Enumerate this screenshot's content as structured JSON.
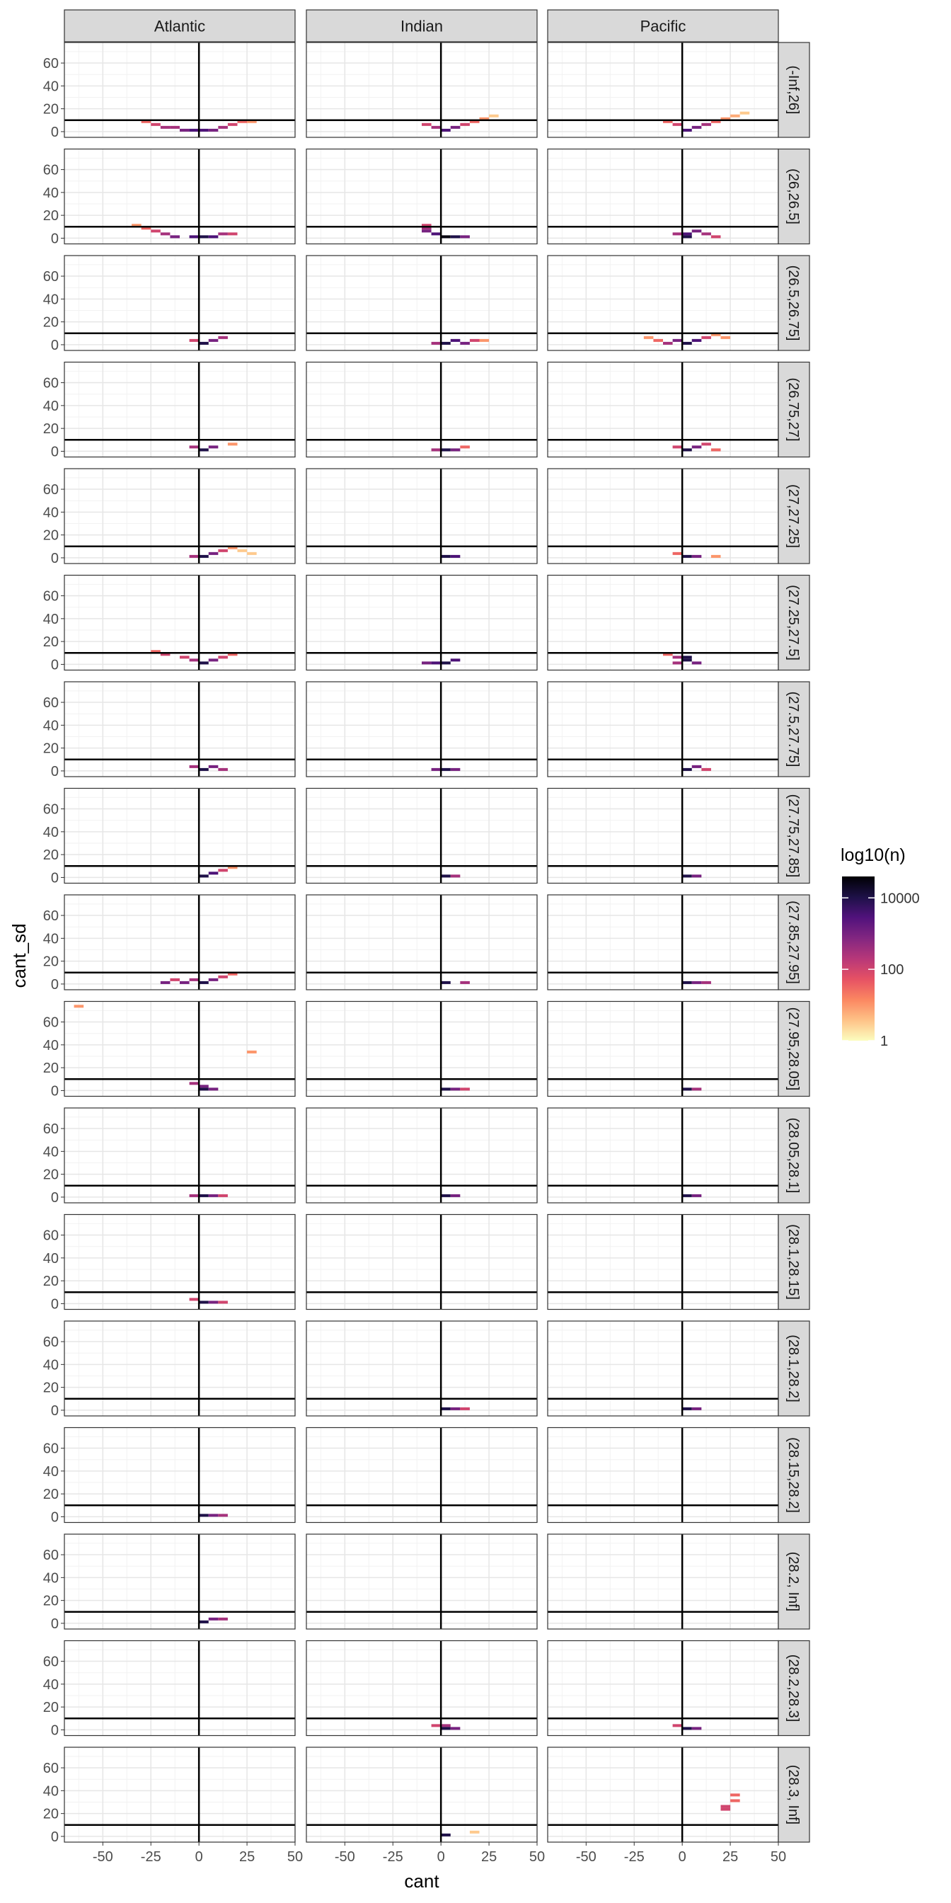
{
  "chart_data": {
    "type": "heatmap",
    "title": "",
    "xlabel": "cant",
    "ylabel": "cant_sd",
    "xlim": [
      -70,
      50
    ],
    "ylim": [
      -5,
      78
    ],
    "x_ticks": [
      "-50",
      "-25",
      "0",
      "25",
      "50"
    ],
    "x_tick_values": [
      -50,
      -25,
      0,
      25,
      50
    ],
    "y_ticks": [
      "0",
      "20",
      "40",
      "60"
    ],
    "y_tick_values": [
      0,
      20,
      40,
      60
    ],
    "reference_lines": {
      "x": 0,
      "y": 10
    },
    "bin_size": {
      "x": 5,
      "y": 2.5
    },
    "grid": true,
    "columns": [
      "Atlantic",
      "Indian",
      "Pacific"
    ],
    "rows": [
      "(-Inf,26]",
      "(26,26.5]",
      "(26.5,26.75]",
      "(26.75,27]",
      "(27,27.25]",
      "(27.25,27.5]",
      "(27.5,27.75]",
      "(27.75,27.85]",
      "(27.85,27.95]",
      "(27.95,28.05]",
      "(28.05,28.1]",
      "(28.1,28.15]",
      "(28.1,28.2]",
      "(28.15,28.2]",
      "(28.2, Inf]",
      "(28.2,28.3]",
      "(28.3, Inf]"
    ],
    "legend": {
      "title": "log10(n)",
      "position": "right",
      "labels": [
        "10000",
        "100",
        "1"
      ],
      "label_log_values": [
        4,
        2,
        0
      ],
      "range_log": [
        0,
        4.6
      ],
      "colormap": "magma",
      "stops": [
        "#FCFDBF",
        "#FEC287",
        "#FB8761",
        "#E65164",
        "#B73779",
        "#822681",
        "#51127C",
        "#1D1147",
        "#000004"
      ]
    },
    "note": "cells are [cant_bin_start, cant_sd_bin_start, log10(n)]",
    "cells": [
      [
        [
          [
            -30,
            7.5,
            1.5
          ],
          [
            -25,
            5,
            2
          ],
          [
            -20,
            2.5,
            2.5
          ],
          [
            -15,
            2.5,
            2.5
          ],
          [
            -10,
            0,
            3
          ],
          [
            -5,
            0,
            3.5
          ],
          [
            0,
            0,
            3.5
          ],
          [
            5,
            0,
            3
          ],
          [
            10,
            2.5,
            2.5
          ],
          [
            15,
            5,
            2
          ],
          [
            20,
            7.5,
            1.5
          ],
          [
            25,
            7.5,
            1
          ]
        ],
        [
          [
            -10,
            5,
            2
          ],
          [
            -5,
            2.5,
            2.5
          ],
          [
            0,
            0,
            3.5
          ],
          [
            5,
            2.5,
            3
          ],
          [
            10,
            5,
            2
          ],
          [
            15,
            7.5,
            1.5
          ],
          [
            20,
            10,
            1
          ],
          [
            25,
            12.5,
            0.5
          ]
        ],
        [
          [
            -10,
            7.5,
            1.5
          ],
          [
            -5,
            5,
            2
          ],
          [
            0,
            0,
            3.5
          ],
          [
            5,
            2.5,
            3
          ],
          [
            10,
            5,
            2.5
          ],
          [
            15,
            7.5,
            1.5
          ],
          [
            20,
            10,
            1
          ],
          [
            25,
            12.5,
            0.8
          ],
          [
            30,
            15,
            0.5
          ]
        ]
      ],
      [
        [
          [
            -35,
            10,
            1
          ],
          [
            -30,
            7.5,
            1.5
          ],
          [
            -25,
            5,
            2
          ],
          [
            -20,
            2.5,
            2.5
          ],
          [
            -15,
            0,
            3
          ],
          [
            -5,
            0,
            3.5
          ],
          [
            0,
            0,
            4
          ],
          [
            5,
            0,
            3.5
          ],
          [
            10,
            2.5,
            2.5
          ],
          [
            15,
            2.5,
            2
          ]
        ],
        [
          [
            -10,
            7.5,
            2.5
          ],
          [
            -10,
            5,
            3
          ],
          [
            -5,
            2.5,
            3.5
          ],
          [
            0,
            0,
            4.5
          ],
          [
            5,
            0,
            4
          ],
          [
            10,
            0,
            3
          ],
          [
            -10,
            10,
            2
          ]
        ],
        [
          [
            -5,
            2.5,
            2.5
          ],
          [
            0,
            2.5,
            3.5
          ],
          [
            0,
            0,
            4
          ],
          [
            5,
            5,
            3
          ],
          [
            10,
            2.5,
            2.5
          ],
          [
            15,
            0,
            2
          ]
        ]
      ],
      [
        [
          [
            -5,
            2.5,
            2
          ],
          [
            0,
            0,
            4
          ],
          [
            5,
            2.5,
            3
          ],
          [
            10,
            5,
            2.5
          ]
        ],
        [
          [
            -5,
            0,
            2.5
          ],
          [
            0,
            0,
            4
          ],
          [
            5,
            2.5,
            3.5
          ],
          [
            10,
            0,
            3
          ],
          [
            15,
            2.5,
            2
          ],
          [
            20,
            2.5,
            1
          ]
        ],
        [
          [
            -20,
            5,
            1
          ],
          [
            -15,
            2.5,
            1.5
          ],
          [
            -10,
            0,
            2.5
          ],
          [
            -5,
            2.5,
            3
          ],
          [
            0,
            0,
            4
          ],
          [
            5,
            2.5,
            3.5
          ],
          [
            10,
            5,
            2
          ],
          [
            15,
            7.5,
            1
          ],
          [
            20,
            5,
            1
          ]
        ]
      ],
      [
        [
          [
            -5,
            2.5,
            2.5
          ],
          [
            0,
            0,
            4
          ],
          [
            5,
            2.5,
            3
          ],
          [
            15,
            5,
            1
          ]
        ],
        [
          [
            -5,
            0,
            2.5
          ],
          [
            0,
            0,
            4
          ],
          [
            5,
            0,
            3
          ],
          [
            10,
            2.5,
            1.5
          ]
        ],
        [
          [
            -5,
            2.5,
            2
          ],
          [
            0,
            0,
            4
          ],
          [
            5,
            2.5,
            3
          ],
          [
            10,
            5,
            2
          ],
          [
            15,
            0,
            1.5
          ]
        ]
      ],
      [
        [
          [
            -5,
            0,
            2.5
          ],
          [
            0,
            0,
            4
          ],
          [
            5,
            2.5,
            3
          ],
          [
            10,
            5,
            2
          ],
          [
            15,
            7.5,
            1
          ],
          [
            20,
            5,
            0.5
          ],
          [
            25,
            2.5,
            0.5
          ]
        ],
        [
          [
            0,
            0,
            4
          ],
          [
            5,
            0,
            3.5
          ]
        ],
        [
          [
            -5,
            2.5,
            1.5
          ],
          [
            0,
            0,
            4
          ],
          [
            5,
            0,
            3
          ],
          [
            15,
            0,
            1
          ]
        ]
      ],
      [
        [
          [
            -25,
            10,
            1.5
          ],
          [
            -20,
            7.5,
            2
          ],
          [
            -10,
            5,
            2
          ],
          [
            -5,
            2.5,
            2.5
          ],
          [
            0,
            0,
            4
          ],
          [
            5,
            2.5,
            3
          ],
          [
            10,
            5,
            2
          ],
          [
            15,
            7.5,
            1.5
          ]
        ],
        [
          [
            -10,
            0,
            3
          ],
          [
            -5,
            0,
            3.5
          ],
          [
            0,
            0,
            4
          ],
          [
            5,
            2.5,
            3.5
          ]
        ],
        [
          [
            -10,
            7.5,
            1.5
          ],
          [
            -5,
            5,
            2.5
          ],
          [
            0,
            5,
            4
          ],
          [
            0,
            2.5,
            4
          ],
          [
            5,
            0,
            3
          ],
          [
            -5,
            0,
            2.5
          ]
        ]
      ],
      [
        [
          [
            -5,
            2.5,
            2.5
          ],
          [
            0,
            0,
            4
          ],
          [
            5,
            2.5,
            3
          ],
          [
            10,
            0,
            2.5
          ]
        ],
        [
          [
            -5,
            0,
            3
          ],
          [
            0,
            0,
            4
          ],
          [
            5,
            0,
            3
          ]
        ],
        [
          [
            0,
            0,
            4
          ],
          [
            5,
            2.5,
            3
          ],
          [
            10,
            0,
            2
          ]
        ]
      ],
      [
        [
          [
            0,
            0,
            4
          ],
          [
            5,
            2.5,
            3.5
          ],
          [
            10,
            5,
            2
          ],
          [
            15,
            7.5,
            1
          ]
        ],
        [
          [
            0,
            0,
            4
          ],
          [
            5,
            0,
            2.5
          ]
        ],
        [
          [
            0,
            0,
            4
          ],
          [
            5,
            0,
            3
          ]
        ]
      ],
      [
        [
          [
            -20,
            0,
            3
          ],
          [
            -15,
            2.5,
            2
          ],
          [
            -10,
            0,
            3
          ],
          [
            -5,
            2.5,
            2.5
          ],
          [
            0,
            0,
            4
          ],
          [
            5,
            2.5,
            3
          ],
          [
            10,
            5,
            2
          ],
          [
            15,
            7.5,
            1.5
          ]
        ],
        [
          [
            0,
            0,
            4
          ],
          [
            10,
            0,
            2.5
          ]
        ],
        [
          [
            0,
            0,
            4
          ],
          [
            5,
            0,
            3
          ],
          [
            10,
            0,
            2.5
          ]
        ]
      ],
      [
        [
          [
            -65,
            72.5,
            1
          ],
          [
            -5,
            5,
            2.5
          ],
          [
            0,
            2.5,
            3
          ],
          [
            0,
            0,
            4
          ],
          [
            5,
            0,
            3
          ],
          [
            25,
            32.5,
            1
          ]
        ],
        [
          [
            0,
            0,
            4
          ],
          [
            5,
            0,
            3
          ],
          [
            10,
            0,
            2
          ]
        ],
        [
          [
            0,
            0,
            4
          ],
          [
            5,
            0,
            2.5
          ]
        ]
      ],
      [
        [
          [
            -5,
            0,
            2.5
          ],
          [
            0,
            0,
            4
          ],
          [
            5,
            0,
            3
          ],
          [
            10,
            0,
            2
          ]
        ],
        [
          [
            0,
            0,
            4
          ],
          [
            5,
            0,
            3
          ]
        ],
        [
          [
            0,
            0,
            4
          ],
          [
            5,
            0,
            3
          ]
        ]
      ],
      [
        [
          [
            -5,
            2.5,
            2
          ],
          [
            0,
            0,
            4
          ],
          [
            5,
            0,
            3
          ],
          [
            10,
            0,
            2
          ]
        ],
        [],
        []
      ],
      [
        [],
        [
          [
            0,
            0,
            4
          ],
          [
            5,
            0,
            3
          ],
          [
            10,
            0,
            2
          ]
        ],
        [
          [
            0,
            0,
            4
          ],
          [
            5,
            0,
            3
          ]
        ]
      ],
      [
        [
          [
            0,
            0,
            4
          ],
          [
            5,
            0,
            3
          ],
          [
            10,
            0,
            2.5
          ]
        ],
        [],
        []
      ],
      [
        [
          [
            0,
            0,
            4
          ],
          [
            5,
            2.5,
            3
          ],
          [
            10,
            2.5,
            2.5
          ]
        ],
        [],
        []
      ],
      [
        [],
        [
          [
            -5,
            2.5,
            2
          ],
          [
            0,
            2.5,
            2.5
          ],
          [
            0,
            0,
            4
          ],
          [
            5,
            0,
            3
          ]
        ],
        [
          [
            -5,
            2.5,
            2
          ],
          [
            0,
            0,
            4
          ],
          [
            5,
            0,
            3
          ]
        ]
      ],
      [
        [],
        [
          [
            0,
            0,
            4
          ],
          [
            15,
            2.5,
            0.5
          ]
        ],
        [
          [
            20,
            22.5,
            2
          ],
          [
            20,
            25,
            2
          ],
          [
            25,
            30,
            1.5
          ],
          [
            25,
            35,
            1.5
          ]
        ]
      ]
    ]
  }
}
